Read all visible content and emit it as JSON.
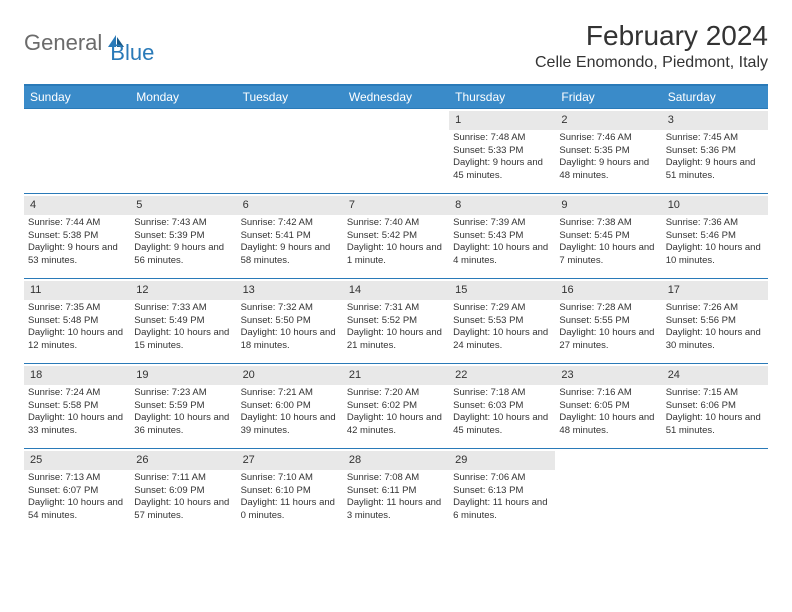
{
  "logo": {
    "general": "General",
    "blue": "Blue"
  },
  "title": "February 2024",
  "location": "Celle Enomondo, Piedmont, Italy",
  "day_names": [
    "Sunday",
    "Monday",
    "Tuesday",
    "Wednesday",
    "Thursday",
    "Friday",
    "Saturday"
  ],
  "colors": {
    "header_bg": "#3a8bc9",
    "border": "#2a7ab8",
    "daynum_bg": "#e8e8e8",
    "text": "#333333",
    "logo_gray": "#6b6b6b",
    "logo_blue": "#2a7ab8"
  },
  "weeks": [
    [
      null,
      null,
      null,
      null,
      {
        "n": "1",
        "sunrise": "7:48 AM",
        "sunset": "5:33 PM",
        "daylight": "9 hours and 45 minutes."
      },
      {
        "n": "2",
        "sunrise": "7:46 AM",
        "sunset": "5:35 PM",
        "daylight": "9 hours and 48 minutes."
      },
      {
        "n": "3",
        "sunrise": "7:45 AM",
        "sunset": "5:36 PM",
        "daylight": "9 hours and 51 minutes."
      }
    ],
    [
      {
        "n": "4",
        "sunrise": "7:44 AM",
        "sunset": "5:38 PM",
        "daylight": "9 hours and 53 minutes."
      },
      {
        "n": "5",
        "sunrise": "7:43 AM",
        "sunset": "5:39 PM",
        "daylight": "9 hours and 56 minutes."
      },
      {
        "n": "6",
        "sunrise": "7:42 AM",
        "sunset": "5:41 PM",
        "daylight": "9 hours and 58 minutes."
      },
      {
        "n": "7",
        "sunrise": "7:40 AM",
        "sunset": "5:42 PM",
        "daylight": "10 hours and 1 minute."
      },
      {
        "n": "8",
        "sunrise": "7:39 AM",
        "sunset": "5:43 PM",
        "daylight": "10 hours and 4 minutes."
      },
      {
        "n": "9",
        "sunrise": "7:38 AM",
        "sunset": "5:45 PM",
        "daylight": "10 hours and 7 minutes."
      },
      {
        "n": "10",
        "sunrise": "7:36 AM",
        "sunset": "5:46 PM",
        "daylight": "10 hours and 10 minutes."
      }
    ],
    [
      {
        "n": "11",
        "sunrise": "7:35 AM",
        "sunset": "5:48 PM",
        "daylight": "10 hours and 12 minutes."
      },
      {
        "n": "12",
        "sunrise": "7:33 AM",
        "sunset": "5:49 PM",
        "daylight": "10 hours and 15 minutes."
      },
      {
        "n": "13",
        "sunrise": "7:32 AM",
        "sunset": "5:50 PM",
        "daylight": "10 hours and 18 minutes."
      },
      {
        "n": "14",
        "sunrise": "7:31 AM",
        "sunset": "5:52 PM",
        "daylight": "10 hours and 21 minutes."
      },
      {
        "n": "15",
        "sunrise": "7:29 AM",
        "sunset": "5:53 PM",
        "daylight": "10 hours and 24 minutes."
      },
      {
        "n": "16",
        "sunrise": "7:28 AM",
        "sunset": "5:55 PM",
        "daylight": "10 hours and 27 minutes."
      },
      {
        "n": "17",
        "sunrise": "7:26 AM",
        "sunset": "5:56 PM",
        "daylight": "10 hours and 30 minutes."
      }
    ],
    [
      {
        "n": "18",
        "sunrise": "7:24 AM",
        "sunset": "5:58 PM",
        "daylight": "10 hours and 33 minutes."
      },
      {
        "n": "19",
        "sunrise": "7:23 AM",
        "sunset": "5:59 PM",
        "daylight": "10 hours and 36 minutes."
      },
      {
        "n": "20",
        "sunrise": "7:21 AM",
        "sunset": "6:00 PM",
        "daylight": "10 hours and 39 minutes."
      },
      {
        "n": "21",
        "sunrise": "7:20 AM",
        "sunset": "6:02 PM",
        "daylight": "10 hours and 42 minutes."
      },
      {
        "n": "22",
        "sunrise": "7:18 AM",
        "sunset": "6:03 PM",
        "daylight": "10 hours and 45 minutes."
      },
      {
        "n": "23",
        "sunrise": "7:16 AM",
        "sunset": "6:05 PM",
        "daylight": "10 hours and 48 minutes."
      },
      {
        "n": "24",
        "sunrise": "7:15 AM",
        "sunset": "6:06 PM",
        "daylight": "10 hours and 51 minutes."
      }
    ],
    [
      {
        "n": "25",
        "sunrise": "7:13 AM",
        "sunset": "6:07 PM",
        "daylight": "10 hours and 54 minutes."
      },
      {
        "n": "26",
        "sunrise": "7:11 AM",
        "sunset": "6:09 PM",
        "daylight": "10 hours and 57 minutes."
      },
      {
        "n": "27",
        "sunrise": "7:10 AM",
        "sunset": "6:10 PM",
        "daylight": "11 hours and 0 minutes."
      },
      {
        "n": "28",
        "sunrise": "7:08 AM",
        "sunset": "6:11 PM",
        "daylight": "11 hours and 3 minutes."
      },
      {
        "n": "29",
        "sunrise": "7:06 AM",
        "sunset": "6:13 PM",
        "daylight": "11 hours and 6 minutes."
      },
      null,
      null
    ]
  ],
  "labels": {
    "sunrise": "Sunrise:",
    "sunset": "Sunset:",
    "daylight": "Daylight:"
  }
}
